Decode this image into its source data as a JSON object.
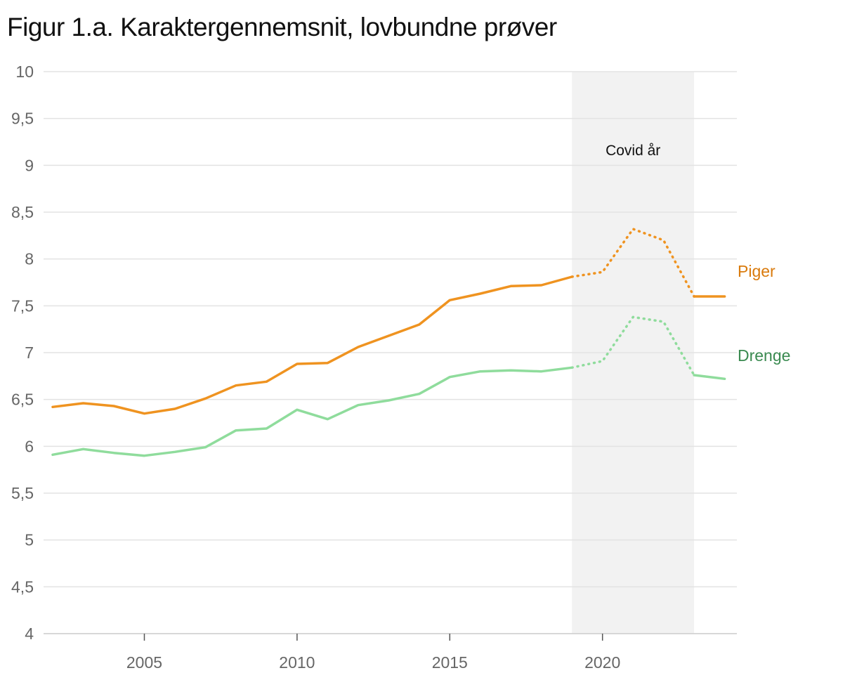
{
  "title": "Figur 1.a. Karaktergennemsnit, lovbundne prøver",
  "chart_data": {
    "type": "line",
    "title": "Figur 1.a. Karaktergennemsnit, lovbundne prøver",
    "xlabel": "",
    "ylabel": "",
    "xlim": [
      2001.7,
      2024.4
    ],
    "ylim": [
      4,
      10
    ],
    "grid": true,
    "x_ticks": [
      2005,
      2010,
      2015,
      2020
    ],
    "x_tick_labels": [
      "2005",
      "2010",
      "2015",
      "2020"
    ],
    "y_ticks": [
      4,
      4.5,
      5,
      5.5,
      6,
      6.5,
      7,
      7.5,
      8,
      8.5,
      9,
      9.5,
      10
    ],
    "y_tick_labels": [
      "4",
      "4,5",
      "5",
      "5,5",
      "6",
      "6,5",
      "7",
      "7,5",
      "8",
      "8,5",
      "9",
      "9,5",
      "10"
    ],
    "shaded_region": {
      "x_start": 2019,
      "x_end": 2023,
      "label": "Covid år",
      "color": "#f2f2f2"
    },
    "series": [
      {
        "name": "Piger",
        "color": "#ef9320",
        "label_color": "#d97a0c",
        "x": [
          2002,
          2003,
          2004,
          2005,
          2006,
          2007,
          2008,
          2009,
          2010,
          2011,
          2012,
          2013,
          2014,
          2015,
          2016,
          2017,
          2018,
          2019,
          2020,
          2021,
          2022,
          2023,
          2024
        ],
        "values": [
          6.42,
          6.46,
          6.43,
          6.35,
          6.4,
          6.51,
          6.65,
          6.69,
          6.88,
          6.89,
          7.06,
          7.18,
          7.3,
          7.56,
          7.63,
          7.71,
          7.72,
          7.81,
          7.86,
          8.32,
          8.2,
          7.6,
          7.6
        ],
        "dotted_x_range": [
          2019,
          2023
        ]
      },
      {
        "name": "Drenge",
        "color": "#8fdc9c",
        "label_color": "#3a8a50",
        "x": [
          2002,
          2003,
          2004,
          2005,
          2006,
          2007,
          2008,
          2009,
          2010,
          2011,
          2012,
          2013,
          2014,
          2015,
          2016,
          2017,
          2018,
          2019,
          2020,
          2021,
          2022,
          2023,
          2024
        ],
        "values": [
          5.91,
          5.97,
          5.93,
          5.9,
          5.94,
          5.99,
          6.17,
          6.19,
          6.39,
          6.29,
          6.44,
          6.49,
          6.56,
          6.74,
          6.8,
          6.81,
          6.8,
          6.84,
          6.91,
          7.38,
          7.33,
          6.76,
          6.72
        ],
        "dotted_x_range": [
          2019,
          2023
        ]
      }
    ]
  }
}
